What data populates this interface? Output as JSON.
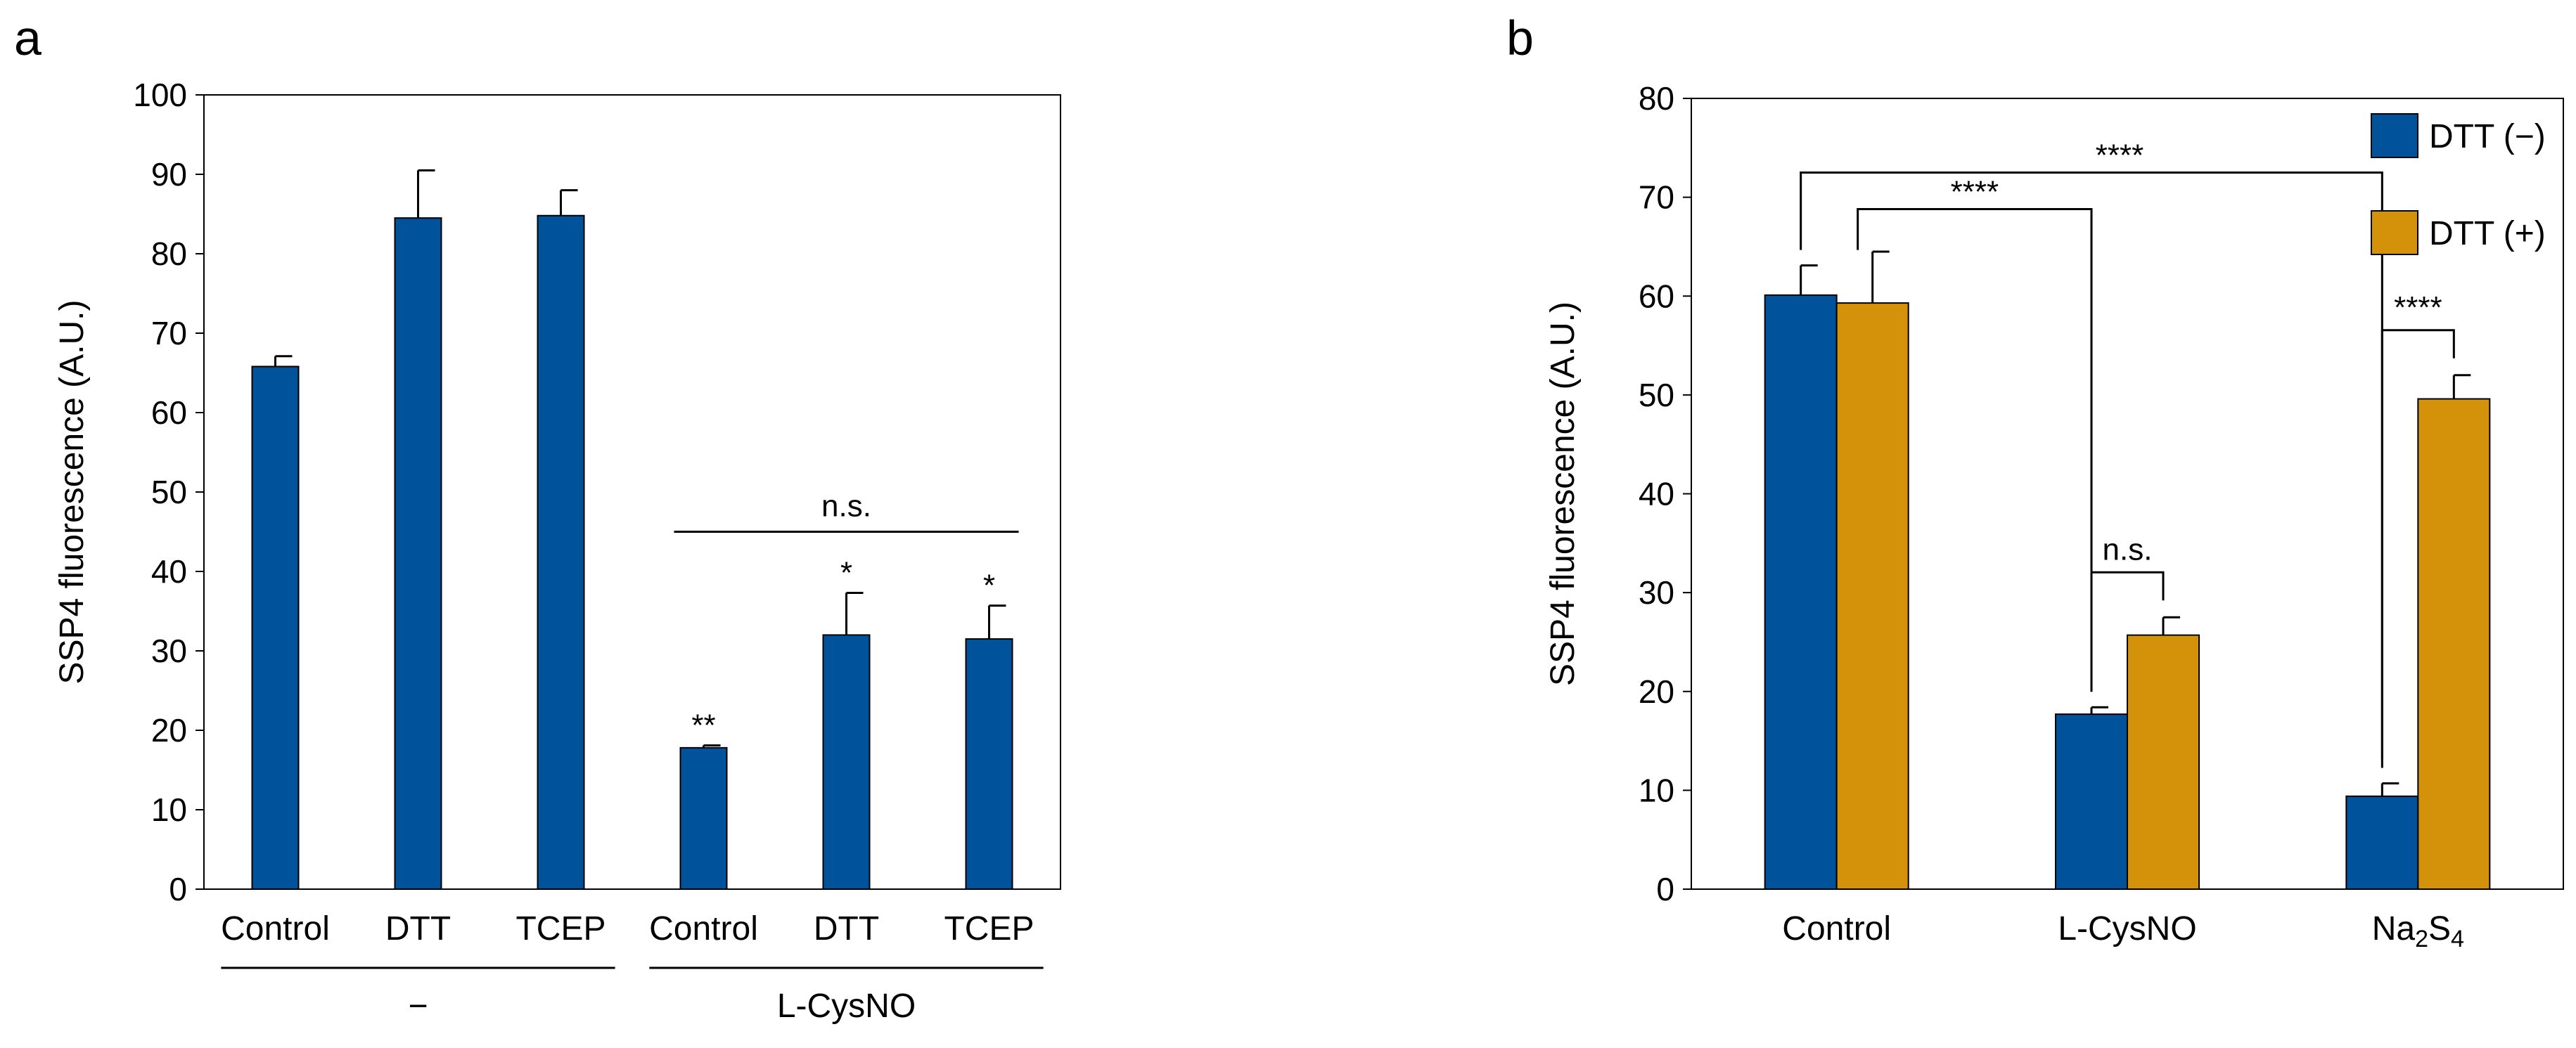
{
  "chart_data": [
    {
      "panel": "a",
      "type": "bar",
      "ylabel": "SSP4 fluorescence (A.U.)",
      "ylim": [
        0,
        100
      ],
      "yticks": [
        0,
        10,
        20,
        30,
        40,
        50,
        60,
        70,
        80,
        90,
        100
      ],
      "categories": [
        "Control",
        "DTT",
        "TCEP",
        "Control",
        "DTT",
        "TCEP"
      ],
      "values": [
        65.8,
        84.5,
        84.8,
        17.8,
        32.0,
        31.5
      ],
      "errors": [
        1.3,
        6.0,
        3.2,
        0.3,
        5.3,
        4.2
      ],
      "significance": [
        "",
        "",
        "",
        "**",
        "*",
        "*"
      ],
      "groups": [
        {
          "label": "−",
          "from": 0,
          "to": 2
        },
        {
          "label": "L-CysNO",
          "from": 3,
          "to": 5
        }
      ],
      "brackets": [
        {
          "label": "n.s.",
          "from": 3,
          "to": 5
        }
      ],
      "color": "#00529B"
    },
    {
      "panel": "b",
      "type": "bar",
      "ylabel": "SSP4 fluorescence (A.U.)",
      "ylim": [
        0,
        80
      ],
      "yticks": [
        0,
        10,
        20,
        30,
        40,
        50,
        60,
        70,
        80
      ],
      "categories": [
        "Control",
        "L-CysNO",
        "Na2S4"
      ],
      "category_display": [
        {
          "base": "Control",
          "parts": []
        },
        {
          "base": "L-CysNO",
          "parts": []
        },
        {
          "base": "Na",
          "parts": [
            {
              "t": "2",
              "sub": true
            },
            {
              "t": "S",
              "sub": false
            },
            {
              "t": "4",
              "sub": true
            }
          ]
        }
      ],
      "series": [
        {
          "name": "DTT (−)",
          "values": [
            60.1,
            17.7,
            9.4
          ],
          "errors": [
            3.0,
            0.7,
            1.3
          ],
          "color": "#00529B"
        },
        {
          "name": "DTT (+)",
          "values": [
            59.3,
            25.7,
            49.6
          ],
          "errors": [
            5.2,
            1.8,
            2.4
          ],
          "color": "#D4920A"
        }
      ],
      "brackets": [
        {
          "label": "****",
          "type": "cross",
          "from_cat": 0,
          "to_cat": 2,
          "level": "high"
        },
        {
          "label": "****",
          "type": "cross",
          "from_cat": 0,
          "to_cat": 1,
          "level": "low"
        },
        {
          "label": "n.s.",
          "type": "within",
          "cat": 1
        },
        {
          "label": "****",
          "type": "within",
          "cat": 2
        }
      ],
      "legend": "top-right"
    }
  ]
}
